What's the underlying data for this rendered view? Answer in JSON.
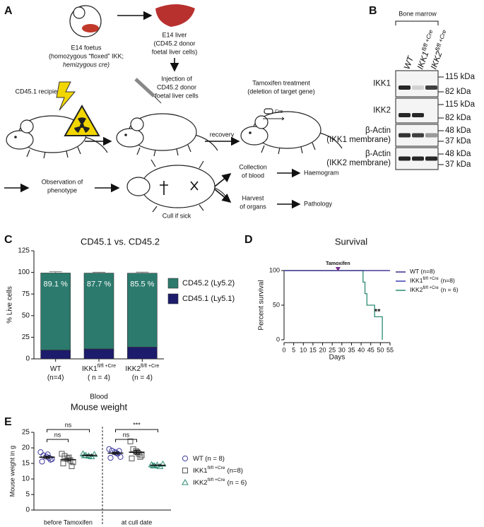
{
  "panel_a": {
    "letter": "A",
    "foetus_label": [
      "E14 foetus",
      "(homozygous “floxed” IKK;",
      "hemizygous cre)"
    ],
    "liver_label": [
      "E14 liver",
      "(CD45.2 donor",
      "foetal liver cells)"
    ],
    "recipient_label": "CD45.1 recipient",
    "injection_label": [
      "Injection of",
      "CD45.2 donor",
      "foetal liver cells"
    ],
    "recovery_label": "recovery",
    "tamoxifen_label": [
      "Tamoxifen treatment",
      "(deletion of target gene)"
    ],
    "cre_label": "Cre",
    "observation_label": [
      "Observation of",
      "phenotype"
    ],
    "cull_label": "Cull if sick",
    "collection_label": [
      "Collection",
      "of blood"
    ],
    "harvest_label": [
      "Harvest",
      "of organs"
    ],
    "haemogram_label": "Haemogram",
    "pathology_label": "Pathology"
  },
  "panel_b": {
    "letter": "B",
    "tissue": "Bone marrow",
    "lanes": [
      {
        "label": "WT"
      },
      {
        "label": "IKK1",
        "sup": "fl/fl +Cre"
      },
      {
        "label": "IKK2",
        "sup": "fl/fl +Cre"
      }
    ],
    "rows": [
      {
        "label": [
          "IKK1"
        ],
        "markers": [
          "115 kDa",
          "82 kDa"
        ]
      },
      {
        "label": [
          "IKK2"
        ],
        "markers": [
          "115 kDa",
          "82 kDa"
        ]
      },
      {
        "label": [
          "β-Actin",
          "(IKK1 membrane)"
        ],
        "markers": [
          "48 kDa",
          "37 kDa"
        ]
      },
      {
        "label": [
          "β-Actin",
          "(IKK2 membrane)"
        ],
        "markers": [
          "48 kDa",
          "37 kDa"
        ]
      }
    ]
  },
  "chart_data": [
    {
      "type": "stacked_bar",
      "letter": "C",
      "title": "CD45.1 vs. CD45.2",
      "y_label": "% Live cells",
      "x_label": "Blood",
      "categories": [
        {
          "label": "WT",
          "n": "(n=4)"
        },
        {
          "label": "IKK1",
          "sup": "fl/fl +Cre",
          "n": "( n = 4)"
        },
        {
          "label": "IKK2",
          "sup": "fl/fl +Cre",
          "n": "(n = 4)"
        }
      ],
      "ylim": [
        0,
        125
      ],
      "yticks": [
        0,
        25,
        50,
        75,
        100,
        125
      ],
      "series": [
        {
          "name": "CD45.1 (Ly5.1)",
          "color": "#1d1b6b",
          "values": [
            10.2,
            11.5,
            13.6
          ],
          "errors": [
            2.0,
            1.5,
            2.0
          ]
        },
        {
          "name": "CD45.2 (Ly5.2)",
          "color": "#2b7a6d",
          "values": [
            89.1,
            87.7,
            85.5
          ],
          "value_labels": [
            "89.1 %",
            "87.7 %",
            "85.5 %"
          ],
          "errors": [
            1.5,
            1.0,
            1.2
          ]
        }
      ]
    },
    {
      "type": "line",
      "letter": "D",
      "title": "Survival",
      "x_label": "Days",
      "y_label": "Percent survival",
      "xlim": [
        0,
        55
      ],
      "xticks": [
        0,
        5,
        10,
        15,
        20,
        25,
        30,
        35,
        40,
        45,
        50,
        55
      ],
      "ylim": [
        0,
        100
      ],
      "yticks": [
        0,
        50,
        100
      ],
      "tamoxifen": {
        "label": "Tamoxifen",
        "day": 28
      },
      "significance": "**",
      "series": [
        {
          "name": "WT (n=8)",
          "color": "#3a2d8c",
          "x": [
            0,
            55
          ],
          "values": [
            100,
            100
          ]
        },
        {
          "name": "IKK1",
          "name_sup": "fl/fl +Cre",
          "name_suffix": "(n=8)",
          "color": "#4040b0",
          "x": [
            0,
            55
          ],
          "values": [
            100,
            100
          ]
        },
        {
          "name": "IKK2",
          "name_sup": "fl/fl +Cre",
          "name_suffix": "(n = 6)",
          "color": "#2e8b74",
          "x": [
            0,
            41,
            41,
            42,
            42,
            43,
            43,
            47,
            47,
            51,
            51
          ],
          "values": [
            100,
            100,
            83.3,
            83.3,
            66.7,
            66.7,
            50,
            50,
            33.3,
            33.3,
            0
          ]
        }
      ]
    },
    {
      "type": "dot_plot",
      "letter": "E",
      "title": "Mouse weight",
      "y_label": "Mouse weight in g",
      "ylim": [
        0,
        25
      ],
      "yticks": [
        0,
        5,
        10,
        15,
        20,
        25
      ],
      "categories": [
        "before Tamoxifen",
        "at cull date"
      ],
      "series": [
        {
          "name": "WT (n = 8)",
          "color": "#3d3a9e",
          "marker": "circle",
          "values": [
            [
              18.6,
              17.6,
              17.2,
              16.8,
              16.4,
              15.6,
              17.9,
              16.2
            ],
            [
              19.6,
              19.1,
              18.6,
              18.1,
              17.1,
              16.8,
              18.4,
              19.0
            ]
          ],
          "mean": [
            17.0,
            18.3
          ],
          "sem": [
            0.4,
            0.35
          ]
        },
        {
          "name": "IKK1",
          "name_sup": "fl/fl +Cre",
          "name_suffix": "(n=8)",
          "color": "#555555",
          "marker": "square",
          "values": [
            [
              18.1,
              17.4,
              16.6,
              16.0,
              15.4,
              15.0,
              16.9,
              14.1
            ],
            [
              22.1,
              19.6,
              19.0,
              18.1,
              17.6,
              16.6,
              18.6,
              17.1
            ]
          ],
          "mean": [
            16.2,
            18.6
          ],
          "sem": [
            0.45,
            0.6
          ]
        },
        {
          "name": "IKK2",
          "name_sup": "fl/fl +Cre",
          "name_suffix": "(n = 6)",
          "color": "#2e8b74",
          "marker": "triangle",
          "values": [
            [
              18.1,
              17.6,
              17.4,
              17.2,
              17.9,
              17.5
            ],
            [
              14.6,
              14.2,
              14.5,
              14.0,
              14.8,
              14.3
            ]
          ],
          "mean": [
            17.6,
            14.4
          ],
          "sem": [
            0.15,
            0.12
          ]
        }
      ],
      "comparisons": [
        {
          "category": 0,
          "series": [
            0,
            1
          ],
          "label": "ns"
        },
        {
          "category": 0,
          "series": [
            0,
            2
          ],
          "label": "ns"
        },
        {
          "category": 1,
          "series": [
            0,
            1
          ],
          "label": "ns"
        },
        {
          "category": 1,
          "series": [
            0,
            2
          ],
          "label": "***"
        }
      ]
    }
  ]
}
